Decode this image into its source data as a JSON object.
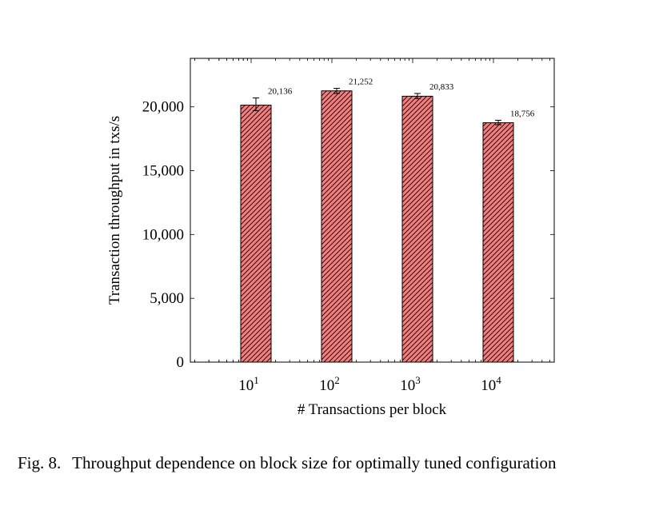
{
  "chart_data": {
    "type": "bar",
    "categories": [
      "10^1",
      "10^2",
      "10^3",
      "10^4"
    ],
    "x_tick_labels": [
      {
        "base": "10",
        "exp": "1"
      },
      {
        "base": "10",
        "exp": "2"
      },
      {
        "base": "10",
        "exp": "3"
      },
      {
        "base": "10",
        "exp": "4"
      }
    ],
    "x_scale": "log",
    "values": [
      20136,
      21252,
      20833,
      18756
    ],
    "value_labels": [
      "20,136",
      "21,252",
      "20,833",
      "18,756"
    ],
    "error_bars": [
      [
        19700,
        20700
      ],
      [
        21050,
        21450
      ],
      [
        20650,
        21050
      ],
      [
        18600,
        18950
      ]
    ],
    "xlabel": "# Transactions per block",
    "ylabel": "Transaction throughput in txs/s",
    "ylim": [
      0,
      23800
    ],
    "y_ticks": [
      0,
      5000,
      10000,
      15000,
      20000
    ],
    "y_tick_labels": [
      "0",
      "5,000",
      "10,000",
      "15,000",
      "20,000"
    ],
    "bar_fill": "#f08080",
    "bar_pattern": "diagonal-hatch",
    "grid": false
  },
  "caption": {
    "label": "Fig. 8.",
    "text": "Throughput dependence on block size for optimally tuned configuration"
  }
}
